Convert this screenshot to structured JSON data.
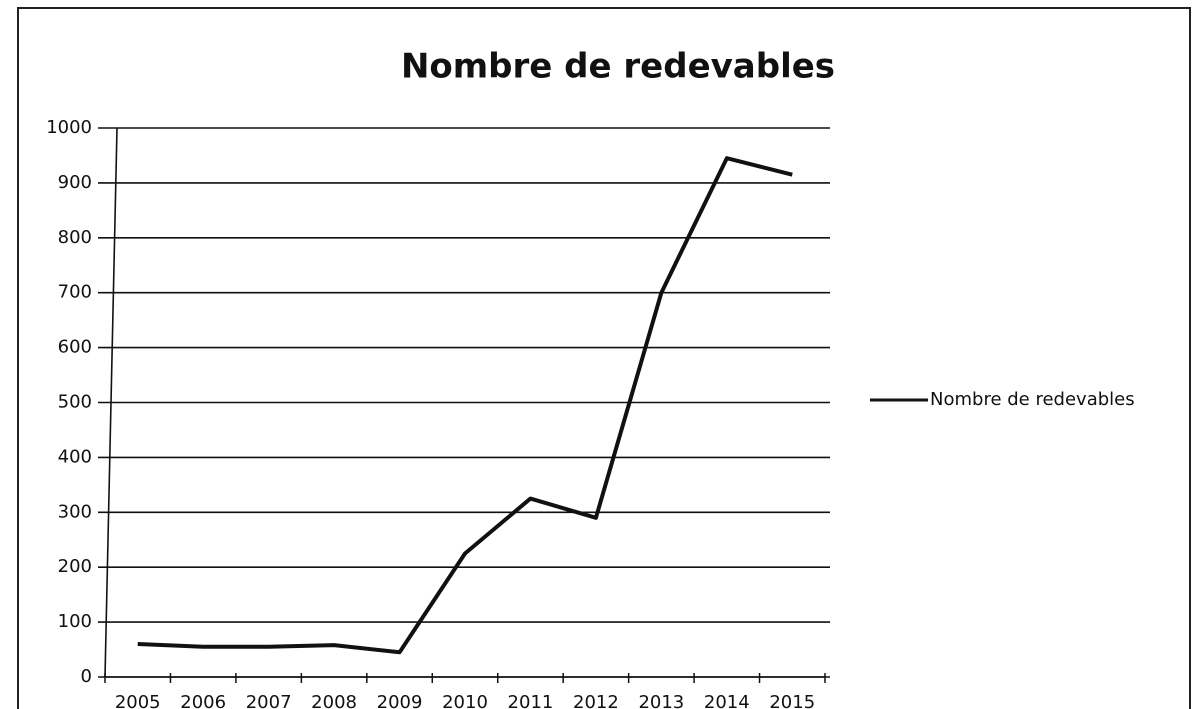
{
  "chart_data": {
    "type": "line",
    "title": "Nombre de redevables",
    "categories": [
      "2005",
      "2006",
      "2007",
      "2008",
      "2009",
      "2010",
      "2011",
      "2012",
      "2013",
      "2014",
      "2015"
    ],
    "series": [
      {
        "name": "Nombre de redevables",
        "color": "#111111",
        "values": [
          60,
          55,
          55,
          58,
          45,
          225,
          325,
          290,
          700,
          945,
          915
        ]
      }
    ],
    "ylim": [
      0,
      1000
    ],
    "yticks": [
      0,
      100,
      200,
      300,
      400,
      500,
      600,
      700,
      800,
      900,
      1000
    ],
    "grid": true,
    "legend": "right"
  }
}
